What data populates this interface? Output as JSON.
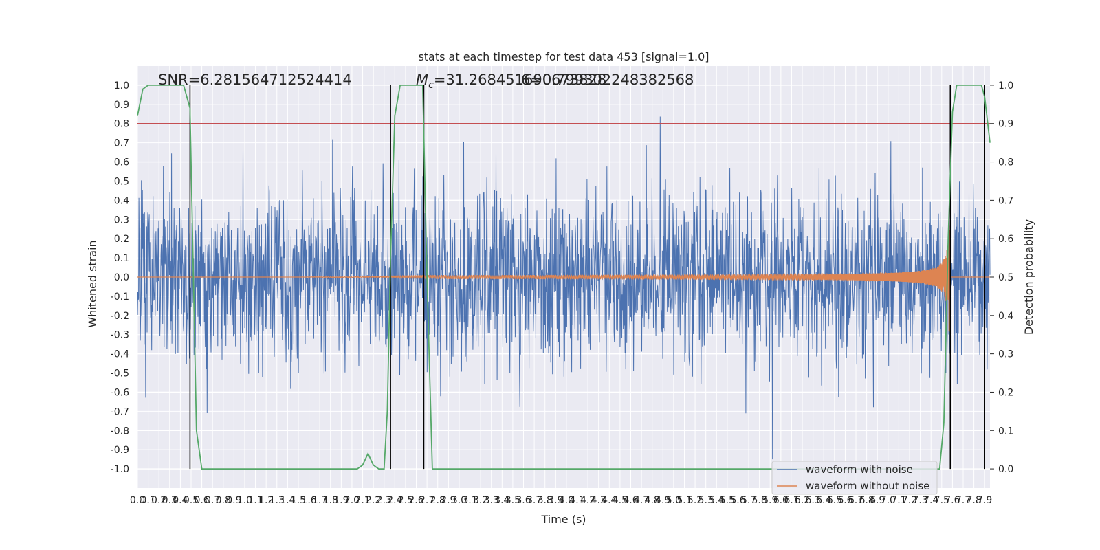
{
  "chart_data": {
    "type": "line",
    "title": "stats at each timestep for test data 453 [signal=1.0]",
    "xlabel": "Time (s)",
    "ylabel": "Whitened strain",
    "y2label": "Detection probability",
    "annotations": {
      "snr": "SNR=6.281564712524414",
      "mc": "M_c=31.268451690673828",
      "overlap": "6=0.799302248382568"
    },
    "xlim": [
      0,
      7.95
    ],
    "ylim": [
      -1.1,
      1.1
    ],
    "y2lim": [
      -0.05,
      1.05
    ],
    "x_ticks": [
      0.0,
      0.1,
      0.2,
      0.3,
      0.4,
      0.5,
      0.6,
      0.7,
      0.8,
      0.9,
      1.0,
      1.1,
      1.2,
      1.3,
      1.4,
      1.5,
      1.6,
      1.7,
      1.8,
      1.9,
      2.0,
      2.1,
      2.2,
      2.3,
      2.4,
      2.5,
      2.6,
      2.7,
      2.8,
      2.9,
      3.0,
      3.1,
      3.2,
      3.3,
      3.4,
      3.5,
      3.6,
      3.7,
      3.8,
      3.9,
      4.0,
      4.1,
      4.2,
      4.3,
      4.4,
      4.5,
      4.6,
      4.7,
      4.8,
      4.9,
      5.0,
      5.1,
      5.2,
      5.3,
      5.4,
      5.5,
      5.6,
      5.7,
      5.8,
      5.9,
      6.0,
      6.1,
      6.2,
      6.3,
      6.4,
      6.5,
      6.6,
      6.7,
      6.8,
      6.9,
      7.0,
      7.1,
      7.2,
      7.3,
      7.4,
      7.5,
      7.6,
      7.7,
      7.8,
      7.9
    ],
    "y_ticks": [
      -1.0,
      -0.9,
      -0.8,
      -0.7,
      -0.6,
      -0.5,
      -0.4,
      -0.3,
      -0.2,
      -0.1,
      0.0,
      0.1,
      0.2,
      0.3,
      0.4,
      0.5,
      0.6,
      0.7,
      0.8,
      0.9,
      1.0
    ],
    "y2_ticks": [
      0.0,
      0.1,
      0.2,
      0.3,
      0.4,
      0.5,
      0.6,
      0.7,
      0.8,
      0.9,
      1.0
    ],
    "threshold": 0.9,
    "vlines": [
      0.49,
      2.36,
      2.67,
      7.58,
      7.9
    ],
    "legend": {
      "position": "lower right",
      "entries": [
        "waveform with noise",
        "waveform without noise"
      ]
    },
    "series": [
      {
        "name": "waveform with noise",
        "color": "#4c72b0",
        "noise": {
          "sigma": 0.22,
          "peak_max": 1.0,
          "duration": 7.95
        }
      },
      {
        "name": "waveform without noise",
        "color": "#dd8452",
        "chirp": {
          "t_merge": 7.58,
          "t_start": 2.7,
          "peak_amplitude": 0.31,
          "early_amplitude": 0.005
        }
      },
      {
        "color": "#55a868",
        "axis": "right",
        "x": [
          0.0,
          0.05,
          0.1,
          0.2,
          0.3,
          0.43,
          0.49,
          0.55,
          0.6,
          1.0,
          1.5,
          2.0,
          2.05,
          2.1,
          2.15,
          2.2,
          2.25,
          2.3,
          2.33,
          2.36,
          2.4,
          2.45,
          2.5,
          2.55,
          2.6,
          2.66,
          2.7,
          2.75,
          2.8,
          3.0,
          4.0,
          5.0,
          6.0,
          7.0,
          7.48,
          7.52,
          7.56,
          7.6,
          7.64,
          7.7,
          7.8,
          7.87,
          7.9,
          7.95
        ],
        "y": [
          0.92,
          0.99,
          1.0,
          1.0,
          1.0,
          1.0,
          0.94,
          0.1,
          0.0,
          0.0,
          0.0,
          0.0,
          0.0,
          0.01,
          0.04,
          0.01,
          0.0,
          0.0,
          0.15,
          0.55,
          0.92,
          1.0,
          1.0,
          1.0,
          1.0,
          1.0,
          0.5,
          0.0,
          0.0,
          0.0,
          0.0,
          0.0,
          0.0,
          0.0,
          0.0,
          0.12,
          0.6,
          0.93,
          1.0,
          1.0,
          1.0,
          1.0,
          0.97,
          0.85
        ]
      }
    ],
    "colors": {
      "plot_bg": "#eaeaf2",
      "grid": "#ffffff",
      "threshold": "#c44e52",
      "vline": "#000000"
    }
  }
}
